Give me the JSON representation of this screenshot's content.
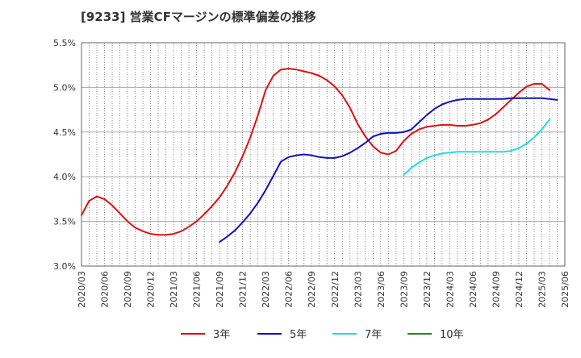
{
  "chart_data": {
    "type": "line",
    "title": "[9233]  営業CFマージンの標準偏差の推移",
    "xlabel": "",
    "ylabel": "",
    "ylim": [
      3.0,
      5.5
    ],
    "y_ticks": [
      "3.0%",
      "3.5%",
      "4.0%",
      "4.5%",
      "5.0%",
      "5.5%"
    ],
    "y_tick_values": [
      3.0,
      3.5,
      4.0,
      4.5,
      5.0,
      5.5
    ],
    "x_ticks": [
      "2020/03",
      "2020/06",
      "2020/09",
      "2020/12",
      "2021/03",
      "2021/06",
      "2021/09",
      "2021/12",
      "2022/03",
      "2022/06",
      "2022/09",
      "2022/12",
      "2023/03",
      "2023/06",
      "2023/09",
      "2023/12",
      "2024/03",
      "2024/06",
      "2024/09",
      "2024/12",
      "2025/03",
      "2025/06"
    ],
    "grid": true,
    "legend_position": "bottom",
    "series": [
      {
        "name": "3年",
        "color": "#dd1111",
        "start": "2020/03",
        "values": [
          3.57,
          3.73,
          3.78,
          3.75,
          3.68,
          3.59,
          3.5,
          3.43,
          3.39,
          3.36,
          3.35,
          3.35,
          3.36,
          3.39,
          3.44,
          3.5,
          3.58,
          3.67,
          3.77,
          3.9,
          4.05,
          4.23,
          4.44,
          4.69,
          4.97,
          5.13,
          5.2,
          5.21,
          5.2,
          5.18,
          5.16,
          5.13,
          5.08,
          5.01,
          4.91,
          4.77,
          4.59,
          4.45,
          4.34,
          4.27,
          4.25,
          4.29,
          4.4,
          4.48,
          4.53,
          4.56,
          4.57,
          4.58,
          4.58,
          4.57,
          4.57,
          4.58,
          4.6,
          4.64,
          4.7,
          4.78,
          4.86,
          4.94,
          5.01,
          5.04,
          5.04,
          4.97
        ]
      },
      {
        "name": "5年",
        "color": "#1111bb",
        "start": "2021/09",
        "values": [
          3.27,
          3.33,
          3.4,
          3.49,
          3.59,
          3.71,
          3.85,
          4.01,
          4.17,
          4.22,
          4.24,
          4.25,
          4.24,
          4.22,
          4.21,
          4.21,
          4.23,
          4.27,
          4.32,
          4.38,
          4.45,
          4.48,
          4.49,
          4.49,
          4.5,
          4.53,
          4.61,
          4.69,
          4.76,
          4.81,
          4.84,
          4.86,
          4.87,
          4.87,
          4.87,
          4.87,
          4.87,
          4.87,
          4.88,
          4.88,
          4.88,
          4.88,
          4.88,
          4.87,
          4.86
        ]
      },
      {
        "name": "7年",
        "color": "#22dddd",
        "start": "2023/09",
        "values": [
          4.02,
          4.1,
          4.16,
          4.21,
          4.24,
          4.26,
          4.27,
          4.28,
          4.28,
          4.28,
          4.28,
          4.28,
          4.28,
          4.28,
          4.29,
          4.32,
          4.37,
          4.44,
          4.53,
          4.64
        ]
      },
      {
        "name": "10年",
        "color": "#228822",
        "start": "2025/03",
        "values": []
      }
    ]
  }
}
